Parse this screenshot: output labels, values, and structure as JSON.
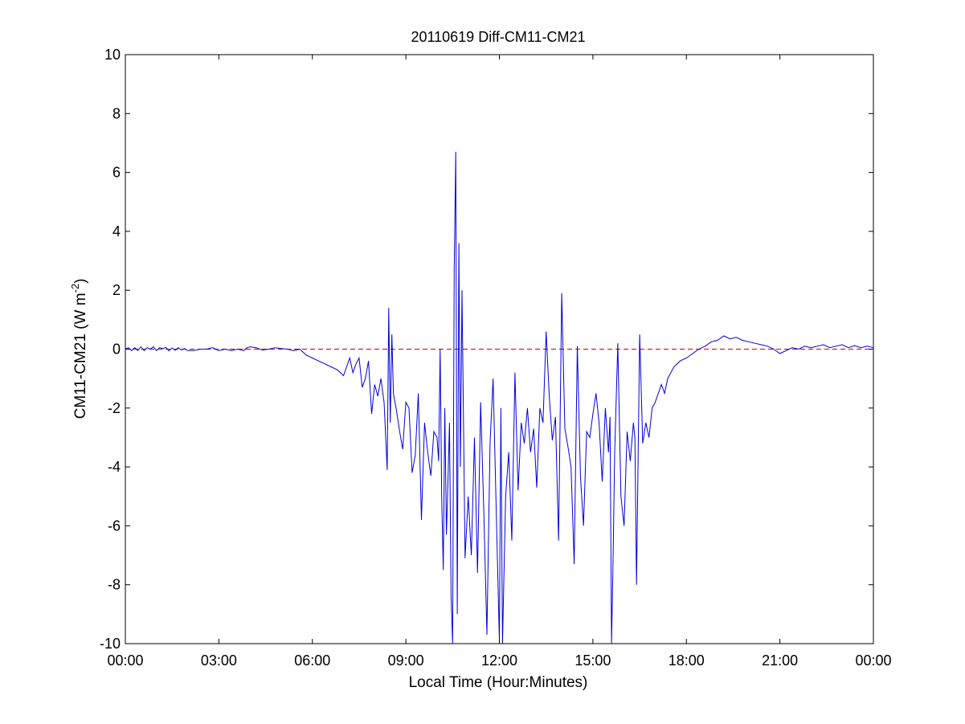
{
  "chart_data": {
    "type": "line",
    "title": "20110619 Diff-CM11-CM21",
    "xlabel": "Local Time (Hour:Minutes)",
    "ylabel": {
      "main": "CM11-CM21 (W m",
      "superscript": "-2",
      "close": ")"
    },
    "x_unit": "hours",
    "xlim": [
      0,
      24
    ],
    "ylim": [
      -10,
      10
    ],
    "x_ticks": [
      0,
      3,
      6,
      9,
      12,
      15,
      18,
      21,
      24
    ],
    "x_tick_labels": [
      "00:00",
      "03:00",
      "06:00",
      "09:00",
      "12:00",
      "15:00",
      "18:00",
      "21:00",
      "00:00"
    ],
    "y_ticks": [
      -10,
      -8,
      -6,
      -4,
      -2,
      0,
      2,
      4,
      6,
      8,
      10
    ],
    "y_tick_labels": [
      "-10",
      "-8",
      "-6",
      "-4",
      "-2",
      "0",
      "2",
      "4",
      "6",
      "8",
      "10"
    ],
    "grid": false,
    "reference_line": {
      "y": 0,
      "style": "dashed",
      "color": "#cc0000"
    },
    "series": [
      {
        "color": "#0000dd",
        "x": [
          0,
          0.1,
          0.2,
          0.3,
          0.4,
          0.5,
          0.6,
          0.7,
          0.8,
          0.9,
          1.0,
          1.1,
          1.2,
          1.3,
          1.4,
          1.5,
          1.6,
          1.7,
          1.8,
          1.9,
          2.0,
          2.2,
          2.4,
          2.6,
          2.8,
          3.0,
          3.2,
          3.4,
          3.6,
          3.8,
          3.9,
          4.0,
          4.2,
          4.4,
          4.6,
          4.8,
          5.0,
          5.2,
          5.4,
          5.6,
          5.8,
          6.0,
          6.2,
          6.4,
          6.6,
          6.8,
          7.0,
          7.1,
          7.2,
          7.3,
          7.4,
          7.5,
          7.6,
          7.7,
          7.8,
          7.9,
          8.0,
          8.1,
          8.2,
          8.3,
          8.4,
          8.45,
          8.5,
          8.55,
          8.6,
          8.7,
          8.8,
          8.9,
          9.0,
          9.1,
          9.2,
          9.3,
          9.4,
          9.5,
          9.6,
          9.7,
          9.8,
          9.9,
          10.0,
          10.05,
          10.1,
          10.15,
          10.2,
          10.25,
          10.3,
          10.35,
          10.4,
          10.45,
          10.5,
          10.55,
          10.6,
          10.65,
          10.7,
          10.75,
          10.8,
          10.9,
          11.0,
          11.1,
          11.2,
          11.3,
          11.4,
          11.5,
          11.6,
          11.7,
          11.8,
          11.9,
          12.0,
          12.05,
          12.1,
          12.2,
          12.3,
          12.4,
          12.5,
          12.6,
          12.7,
          12.8,
          12.9,
          13.0,
          13.1,
          13.2,
          13.3,
          13.4,
          13.5,
          13.6,
          13.7,
          13.8,
          13.9,
          14.0,
          14.1,
          14.2,
          14.3,
          14.4,
          14.5,
          14.6,
          14.7,
          14.8,
          14.9,
          15.0,
          15.1,
          15.2,
          15.3,
          15.4,
          15.5,
          15.55,
          15.6,
          15.65,
          15.7,
          15.8,
          15.9,
          16.0,
          16.1,
          16.2,
          16.3,
          16.35,
          16.4,
          16.5,
          16.6,
          16.7,
          16.8,
          16.9,
          17.0,
          17.1,
          17.2,
          17.3,
          17.4,
          17.5,
          17.6,
          17.8,
          18.0,
          18.2,
          18.4,
          18.6,
          18.8,
          19.0,
          19.2,
          19.4,
          19.6,
          19.8,
          20.0,
          20.2,
          20.4,
          20.6,
          20.8,
          21.0,
          21.2,
          21.4,
          21.6,
          21.8,
          22.0,
          22.2,
          22.4,
          22.6,
          22.8,
          23.0,
          23.2,
          23.4,
          23.6,
          23.8,
          24.0
        ],
        "y": [
          0.0,
          0.05,
          -0.05,
          0.05,
          -0.05,
          0.08,
          -0.05,
          0.05,
          0.0,
          0.08,
          -0.05,
          0.05,
          0.02,
          0.06,
          -0.06,
          0.04,
          -0.04,
          0.05,
          -0.03,
          0.02,
          -0.05,
          -0.05,
          0.0,
          0.0,
          0.05,
          -0.05,
          0.0,
          -0.05,
          0.0,
          -0.05,
          0.05,
          0.08,
          0.05,
          -0.03,
          0.0,
          0.05,
          0.02,
          0.0,
          -0.05,
          0.0,
          -0.2,
          -0.3,
          -0.4,
          -0.5,
          -0.6,
          -0.7,
          -0.9,
          -0.6,
          -0.3,
          -0.8,
          -0.5,
          -0.3,
          -1.3,
          -1.0,
          -0.4,
          -2.2,
          -1.2,
          -1.6,
          -1.0,
          -1.8,
          -4.1,
          1.4,
          -2.5,
          0.5,
          -1.5,
          -2.1,
          -2.8,
          -3.4,
          -1.8,
          -2.0,
          -4.2,
          -3.6,
          -1.5,
          -5.8,
          -2.5,
          -3.5,
          -4.3,
          -2.8,
          -3.0,
          -3.8,
          0.0,
          -5.0,
          -7.5,
          -2.0,
          -6.3,
          -4.5,
          -2.5,
          -8.4,
          -10.0,
          2.7,
          6.7,
          -9.0,
          3.6,
          -4.0,
          2.0,
          -7.1,
          -5.0,
          -7.0,
          -3.0,
          -7.6,
          -1.8,
          -5.5,
          -9.7,
          -3.2,
          -1.0,
          -5.5,
          -9.9,
          -2.0,
          -10.0,
          -5.0,
          -3.5,
          -6.5,
          -0.8,
          -4.8,
          -2.5,
          -3.2,
          -2.0,
          -3.5,
          -2.7,
          -4.7,
          -2.0,
          -2.5,
          0.6,
          -1.6,
          -3.1,
          -2.3,
          -6.5,
          1.9,
          -2.7,
          -3.3,
          -4.0,
          -7.3,
          0.1,
          -4.3,
          -6.0,
          -2.8,
          -3.0,
          -2.2,
          -1.5,
          -2.5,
          -4.5,
          -2.0,
          -3.5,
          -2.3,
          -10.0,
          -7.0,
          -3.5,
          0.2,
          -5.0,
          -6.0,
          -2.8,
          -3.8,
          -2.5,
          -3.0,
          -8.0,
          0.5,
          -3.2,
          -2.5,
          -3.0,
          -2.0,
          -1.8,
          -1.5,
          -1.2,
          -1.5,
          -1.0,
          -0.8,
          -0.6,
          -0.4,
          -0.3,
          -0.15,
          0.0,
          0.1,
          0.25,
          0.3,
          0.45,
          0.35,
          0.4,
          0.3,
          0.25,
          0.2,
          0.15,
          0.1,
          0.0,
          -0.15,
          -0.05,
          0.05,
          0.0,
          0.1,
          0.05,
          0.1,
          0.15,
          0.05,
          0.1,
          0.15,
          0.05,
          0.12,
          0.05,
          0.1,
          0.05
        ]
      }
    ]
  }
}
